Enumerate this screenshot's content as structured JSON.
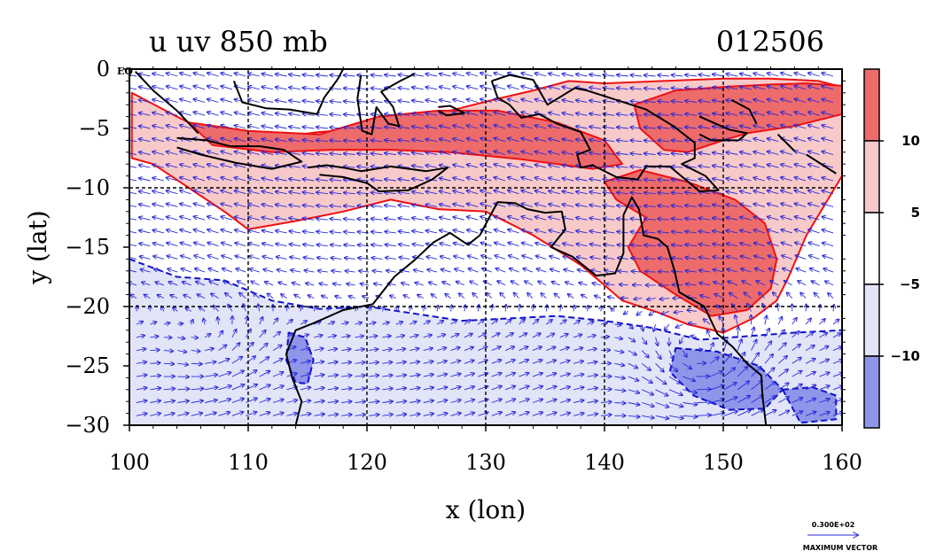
{
  "colors": {
    "pos_strong": "#ee6b6b",
    "pos_weak": "#f8c9c9",
    "neutral": "#ffffff",
    "neg_weak": "#e2e4f8",
    "neg_strong": "#8f96ea",
    "pos_contour": "#ee1111",
    "neg_contour": "#1111cc",
    "vector": "#2a2ad8",
    "coast": "#000000"
  },
  "chart_data": {
    "type": "contour-vector-map",
    "title": "u uv 850 mb",
    "timestamp": "012506",
    "xlabel": "x (lon)",
    "ylabel": "y (lat)",
    "xlim": [
      100,
      160
    ],
    "ylim": [
      -30,
      0
    ],
    "x_ticks": [
      "100",
      "110",
      "120",
      "130",
      "140",
      "150",
      "160"
    ],
    "y_ticks": [
      "0",
      "−5",
      "−10",
      "−15",
      "−20",
      "−25",
      "−30"
    ],
    "y_top_suffix": "EQ",
    "grid_lon": [
      110,
      120,
      130,
      140,
      150
    ],
    "grid_lat": [
      -10,
      -20
    ],
    "contour_levels": [
      -10,
      -5,
      5,
      10
    ],
    "colorbar_labels": [
      "10",
      "5",
      "−5",
      "−10"
    ],
    "vector_scale_label": "0.300E+02",
    "vector_caption": "MAXIMUM VECTOR",
    "u_regions": [
      {
        "class": "pos_weak",
        "value": 7,
        "outline": [
          [
            100.2,
            -2
          ],
          [
            104,
            -4
          ],
          [
            107,
            -5.5
          ],
          [
            112,
            -5.8
          ],
          [
            116,
            -5.3
          ],
          [
            120,
            -5
          ],
          [
            124,
            -4.5
          ],
          [
            127,
            -3.5
          ],
          [
            131,
            -2.5
          ],
          [
            134,
            -1.8
          ],
          [
            137,
            -1
          ],
          [
            140,
            -1.2
          ],
          [
            145,
            -1
          ],
          [
            150,
            -0.8
          ],
          [
            154,
            -0.8
          ],
          [
            158,
            -1
          ],
          [
            160,
            -1.5
          ],
          [
            160,
            -9
          ],
          [
            158.5,
            -11.5
          ],
          [
            157,
            -14
          ],
          [
            155.5,
            -17.5
          ],
          [
            154.5,
            -19.5
          ],
          [
            152.5,
            -21
          ],
          [
            150,
            -22.2
          ],
          [
            147,
            -21.5
          ],
          [
            144.5,
            -20.5
          ],
          [
            141.5,
            -19.5
          ],
          [
            138,
            -16.5
          ],
          [
            134,
            -14
          ],
          [
            130,
            -12
          ],
          [
            126,
            -11.8
          ],
          [
            122,
            -11
          ],
          [
            118,
            -12
          ],
          [
            114,
            -12.8
          ],
          [
            110,
            -13.5
          ],
          [
            108,
            -12
          ],
          [
            105,
            -10
          ],
          [
            102,
            -8
          ],
          [
            100.2,
            -7.5
          ]
        ]
      },
      {
        "class": "pos_strong",
        "value": 12,
        "outline": [
          [
            105,
            -4.5
          ],
          [
            110,
            -5.2
          ],
          [
            116,
            -5.5
          ],
          [
            121,
            -4
          ],
          [
            126,
            -3.5
          ],
          [
            131,
            -3.5
          ],
          [
            136,
            -4.5
          ],
          [
            140,
            -6
          ],
          [
            141.5,
            -8
          ],
          [
            139,
            -8.4
          ],
          [
            133,
            -7.6
          ],
          [
            127,
            -7
          ],
          [
            122,
            -6.8
          ],
          [
            117,
            -6.8
          ],
          [
            112,
            -7
          ],
          [
            107,
            -6.4
          ]
        ]
      },
      {
        "class": "pos_strong",
        "value": 12,
        "outline": [
          [
            142.5,
            -3
          ],
          [
            146,
            -1.8
          ],
          [
            150,
            -1.5
          ],
          [
            154,
            -1.3
          ],
          [
            157,
            -1.2
          ],
          [
            160,
            -1.4
          ],
          [
            160,
            -3.8
          ],
          [
            156,
            -4.8
          ],
          [
            152,
            -5.4
          ],
          [
            150,
            -6
          ],
          [
            147,
            -7
          ],
          [
            145,
            -6.8
          ],
          [
            143,
            -5
          ]
        ]
      },
      {
        "class": "pos_strong",
        "value": 12,
        "outline": [
          [
            140,
            -9.5
          ],
          [
            143,
            -8.5
          ],
          [
            147,
            -9.5
          ],
          [
            151,
            -11
          ],
          [
            153.5,
            -13
          ],
          [
            154.5,
            -16
          ],
          [
            154,
            -18.5
          ],
          [
            152,
            -20.3
          ],
          [
            149,
            -20.8
          ],
          [
            146,
            -19
          ],
          [
            143,
            -17
          ],
          [
            142,
            -15
          ],
          [
            143.5,
            -12.5
          ],
          [
            141,
            -11
          ]
        ]
      },
      {
        "class": "neg_weak",
        "value": -7,
        "outline": [
          [
            100,
            -16
          ],
          [
            104,
            -17.5
          ],
          [
            108,
            -17.8
          ],
          [
            112,
            -19.5
          ],
          [
            116,
            -20.2
          ],
          [
            120,
            -20
          ],
          [
            124,
            -20.6
          ],
          [
            128,
            -21.2
          ],
          [
            132,
            -21
          ],
          [
            136,
            -20.8
          ],
          [
            140,
            -21.2
          ],
          [
            144,
            -21.8
          ],
          [
            148,
            -22.8
          ],
          [
            152,
            -22.5
          ],
          [
            156,
            -22.2
          ],
          [
            160,
            -22
          ],
          [
            160,
            -30
          ],
          [
            100,
            -30
          ]
        ]
      },
      {
        "class": "neg_strong",
        "value": -12,
        "outline": [
          [
            146,
            -23.5
          ],
          [
            149.5,
            -23.8
          ],
          [
            153,
            -25
          ],
          [
            155,
            -27
          ],
          [
            153.5,
            -28.6
          ],
          [
            150.5,
            -28.7
          ],
          [
            147.5,
            -27.5
          ],
          [
            145.5,
            -25.5
          ]
        ]
      },
      {
        "class": "neg_strong",
        "value": -12,
        "outline": [
          [
            155,
            -27
          ],
          [
            157.5,
            -26.8
          ],
          [
            159.5,
            -27.5
          ],
          [
            159.5,
            -29.5
          ],
          [
            156.5,
            -29.8
          ]
        ]
      },
      {
        "class": "neg_strong",
        "value": -12,
        "outline": [
          [
            113.4,
            -22.2
          ],
          [
            114.8,
            -22.6
          ],
          [
            115.5,
            -24.5
          ],
          [
            115,
            -26.5
          ],
          [
            114,
            -26.4
          ],
          [
            113.2,
            -24.5
          ]
        ]
      }
    ],
    "coastlines": [
      [
        [
          114,
          -30
        ],
        [
          114.5,
          -28
        ],
        [
          113.7,
          -26
        ],
        [
          113.2,
          -24
        ],
        [
          114,
          -22
        ],
        [
          115.5,
          -21.4
        ],
        [
          118,
          -20.3
        ],
        [
          120.5,
          -19.8
        ],
        [
          122.3,
          -17.5
        ],
        [
          124,
          -16.1
        ],
        [
          125.6,
          -14.6
        ],
        [
          127,
          -13.8
        ],
        [
          128.5,
          -14.8
        ],
        [
          129.5,
          -14
        ],
        [
          130.3,
          -12.5
        ],
        [
          131,
          -11.2
        ],
        [
          132.5,
          -11.3
        ],
        [
          133.5,
          -11.8
        ],
        [
          135,
          -12.1
        ],
        [
          136.4,
          -12
        ],
        [
          136.7,
          -13.5
        ],
        [
          135.5,
          -15
        ],
        [
          137.3,
          -15.8
        ],
        [
          139.3,
          -17.4
        ],
        [
          140.9,
          -17.2
        ],
        [
          141.6,
          -15.5
        ],
        [
          141.6,
          -12.3
        ],
        [
          142.3,
          -10.8
        ],
        [
          142.9,
          -11.8
        ],
        [
          143.3,
          -14
        ],
        [
          144.5,
          -14.3
        ],
        [
          145.3,
          -15
        ],
        [
          145.9,
          -17
        ],
        [
          146.3,
          -18.8
        ],
        [
          148.4,
          -20
        ],
        [
          149.5,
          -22.3
        ],
        [
          150.8,
          -23.4
        ],
        [
          152,
          -24.8
        ],
        [
          153.2,
          -25.8
        ],
        [
          153.3,
          -27.5
        ],
        [
          153.6,
          -30
        ]
      ],
      [
        [
          100.5,
          -0.2
        ],
        [
          102,
          -1.8
        ],
        [
          104,
          -3.5
        ],
        [
          105.8,
          -5.4
        ]
      ],
      [
        [
          104,
          -5.8
        ],
        [
          106.5,
          -6
        ],
        [
          108.5,
          -6.5
        ],
        [
          111,
          -6.5
        ],
        [
          113,
          -6.8
        ],
        [
          114.5,
          -7.8
        ],
        [
          112,
          -8.4
        ],
        [
          109,
          -7.9
        ],
        [
          106,
          -7.2
        ],
        [
          104,
          -6.6
        ]
      ],
      [
        [
          115,
          -8.3
        ],
        [
          116.6,
          -8.1
        ],
        [
          118,
          -8.3
        ],
        [
          119.5,
          -8.6
        ],
        [
          122,
          -8.2
        ],
        [
          125,
          -8.6
        ],
        [
          126.8,
          -8.3
        ],
        [
          125.5,
          -9.3
        ],
        [
          123.5,
          -10.2
        ],
        [
          121,
          -10.3
        ],
        [
          120,
          -9.6
        ],
        [
          118,
          -9.1
        ],
        [
          116,
          -8.9
        ]
      ],
      [
        [
          108.8,
          -1
        ],
        [
          109.5,
          -2.8
        ],
        [
          111.5,
          -3.3
        ],
        [
          113.5,
          -3.4
        ],
        [
          115.8,
          -3.8
        ],
        [
          116.4,
          -2.4
        ],
        [
          117.5,
          -0.9
        ],
        [
          118,
          0
        ]
      ],
      [
        [
          119.5,
          -0.5
        ],
        [
          119.2,
          -2.5
        ],
        [
          119.6,
          -5.2
        ],
        [
          120.4,
          -5.5
        ],
        [
          120.8,
          -3.2
        ],
        [
          121.8,
          -4.6
        ],
        [
          122.7,
          -4.8
        ],
        [
          122.2,
          -3.2
        ],
        [
          121.2,
          -1.9
        ],
        [
          122.8,
          -1
        ],
        [
          124,
          -0.4
        ]
      ],
      [
        [
          126,
          -3.2
        ],
        [
          127,
          -3.1
        ],
        [
          128.2,
          -3.7
        ],
        [
          126.7,
          -3.9
        ],
        [
          126,
          -3.5
        ]
      ],
      [
        [
          130.5,
          -1
        ],
        [
          132,
          -0.5
        ],
        [
          134,
          -0.9
        ],
        [
          135.2,
          -3
        ],
        [
          137.5,
          -1.6
        ],
        [
          138.5,
          -1.8
        ],
        [
          141,
          -2.6
        ],
        [
          143.5,
          -3.4
        ],
        [
          145.8,
          -4.8
        ],
        [
          147.6,
          -6.2
        ],
        [
          147.6,
          -7.5
        ],
        [
          146.5,
          -8
        ],
        [
          148.5,
          -9
        ],
        [
          149.6,
          -10.2
        ],
        [
          148,
          -10.3
        ],
        [
          145.5,
          -8.2
        ],
        [
          143.5,
          -8.2
        ],
        [
          142.8,
          -9.3
        ],
        [
          141,
          -9.1
        ],
        [
          139,
          -8.1
        ],
        [
          138,
          -8.3
        ],
        [
          137.7,
          -7.2
        ],
        [
          138.8,
          -6.8
        ],
        [
          138,
          -5.3
        ],
        [
          136,
          -4.6
        ],
        [
          134.5,
          -3.8
        ],
        [
          133,
          -4.1
        ],
        [
          132,
          -3
        ],
        [
          131,
          -2.4
        ],
        [
          130.5,
          -1
        ]
      ],
      [
        [
          148,
          -4
        ],
        [
          150.5,
          -5.1
        ],
        [
          152,
          -5.4
        ],
        [
          151.3,
          -6
        ],
        [
          149,
          -6
        ],
        [
          148,
          -5.5
        ]
      ],
      [
        [
          150.7,
          -2.6
        ],
        [
          152.2,
          -3.4
        ],
        [
          152.8,
          -4.6
        ]
      ],
      [
        [
          154.6,
          -5.5
        ],
        [
          156,
          -6.9
        ]
      ],
      [
        [
          157,
          -7.2
        ],
        [
          159.5,
          -8.8
        ]
      ]
    ],
    "wind_field_description": "easterly flow north of 20S, westerly flow south of 20S, anticyclonic circulation near 148E 25S"
  }
}
